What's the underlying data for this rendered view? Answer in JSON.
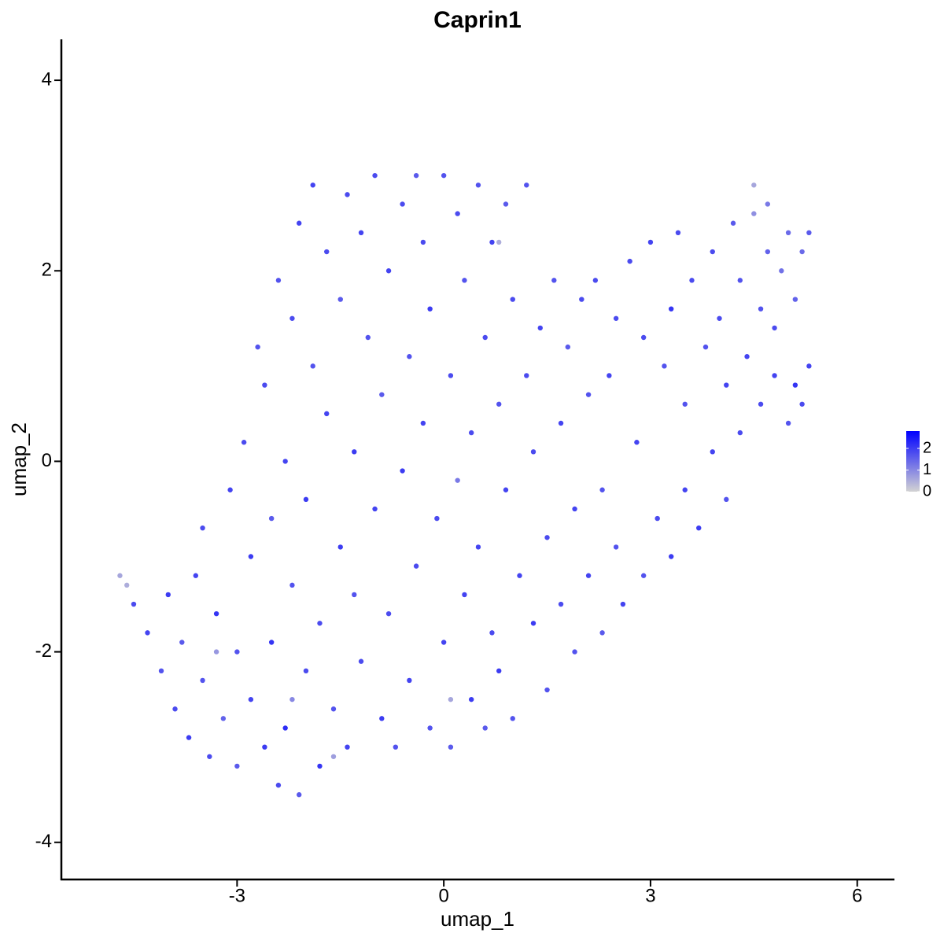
{
  "chart_data": {
    "type": "scatter",
    "title": "Caprin1",
    "x_label": "umap_1",
    "y_label": "umap_2",
    "xlim": [
      -5.55,
      6.54
    ],
    "ylim": [
      -4.39,
      4.43
    ],
    "xticks": [
      -3,
      0,
      3,
      6
    ],
    "yticks": [
      -4,
      -2,
      0,
      2,
      4
    ],
    "colorbar": {
      "lim": [
        0,
        2.8
      ],
      "ticks": [
        0,
        1,
        2
      ],
      "low_color": "#d3d3d3",
      "high_color": "#0000ff"
    },
    "x": [
      -4.7,
      -4.6,
      -4.5,
      -4.3,
      -4.1,
      -4.0,
      -3.9,
      -3.8,
      -3.7,
      -3.6,
      -3.5,
      -3.4,
      -3.3,
      -3.2,
      -3.1,
      -3.0,
      -3.0,
      -2.9,
      -2.8,
      -2.8,
      -2.7,
      -2.6,
      -2.6,
      -2.5,
      -2.5,
      -2.4,
      -2.4,
      -2.3,
      -2.3,
      -2.2,
      -2.2,
      -2.1,
      -2.1,
      -2.0,
      -2.0,
      -1.9,
      -1.9,
      -1.8,
      -1.8,
      -1.7,
      -1.7,
      -1.6,
      -1.5,
      -1.5,
      -1.4,
      -1.4,
      -1.3,
      -1.3,
      -1.2,
      -1.2,
      -1.1,
      -1.0,
      -1.0,
      -0.9,
      -0.9,
      -0.8,
      -0.8,
      -0.7,
      -0.6,
      -0.6,
      -0.5,
      -0.5,
      -0.4,
      -0.4,
      -0.3,
      -0.3,
      -0.2,
      -0.2,
      -0.1,
      0.0,
      0.0,
      0.1,
      0.1,
      0.2,
      0.2,
      0.3,
      0.3,
      0.4,
      0.4,
      0.5,
      0.5,
      0.6,
      0.6,
      0.7,
      0.7,
      0.8,
      0.8,
      0.9,
      0.9,
      1.0,
      1.0,
      1.1,
      1.2,
      1.2,
      1.3,
      1.3,
      1.4,
      1.5,
      1.5,
      1.6,
      1.7,
      1.7,
      1.8,
      1.9,
      1.9,
      2.0,
      2.1,
      2.1,
      2.2,
      2.3,
      2.3,
      2.4,
      2.5,
      2.5,
      2.6,
      2.7,
      2.8,
      2.9,
      2.9,
      3.0,
      3.1,
      3.2,
      3.3,
      3.3,
      3.4,
      3.5,
      3.5,
      3.6,
      3.7,
      3.8,
      3.9,
      3.9,
      4.0,
      4.1,
      4.1,
      4.2,
      4.3,
      4.3,
      4.4,
      4.5,
      4.5,
      4.6,
      4.6,
      4.7,
      4.7,
      4.8,
      4.8,
      4.9,
      5.0,
      5.0,
      5.1,
      5.1,
      5.2,
      5.3,
      5.3,
      5.2,
      -3.5,
      -3.3,
      -2.2,
      -1.6,
      0.1,
      0.8
    ],
    "y": [
      -1.2,
      -1.3,
      -1.5,
      -1.8,
      -2.2,
      -1.4,
      -2.6,
      -1.9,
      -2.9,
      -1.2,
      -2.3,
      -3.1,
      -1.6,
      -2.7,
      -0.3,
      -2.0,
      -3.2,
      0.2,
      -1.0,
      -2.5,
      1.2,
      -3.0,
      0.8,
      -0.6,
      -1.9,
      1.9,
      -3.4,
      0.0,
      -2.8,
      1.5,
      -1.3,
      2.5,
      -3.5,
      -0.4,
      -2.2,
      2.9,
      1.0,
      -3.2,
      -1.7,
      0.5,
      2.2,
      -2.6,
      -0.9,
      1.7,
      2.8,
      -3.0,
      -1.4,
      0.1,
      2.4,
      -2.1,
      1.3,
      -0.5,
      3.0,
      -2.7,
      0.7,
      2.0,
      -1.6,
      -3.0,
      2.7,
      -0.1,
      1.1,
      -2.3,
      3.0,
      -1.1,
      0.4,
      2.3,
      -2.8,
      1.6,
      -0.6,
      3.0,
      -1.9,
      0.9,
      -3.0,
      2.6,
      -0.2,
      -1.4,
      1.9,
      -2.5,
      0.3,
      2.9,
      -0.9,
      1.3,
      -2.8,
      2.3,
      -1.8,
      0.6,
      -2.2,
      2.7,
      -0.3,
      1.7,
      -2.7,
      -1.2,
      0.9,
      2.9,
      -1.7,
      0.1,
      1.4,
      -2.4,
      -0.8,
      1.9,
      0.4,
      -1.5,
      1.2,
      -0.5,
      -2.0,
      1.7,
      0.7,
      -1.2,
      1.9,
      -0.3,
      -1.8,
      0.9,
      1.5,
      -0.9,
      -1.5,
      2.1,
      0.2,
      -1.2,
      1.3,
      2.3,
      -0.6,
      1.0,
      -1.0,
      1.6,
      2.4,
      0.6,
      -0.3,
      1.9,
      -0.7,
      1.2,
      2.2,
      0.1,
      1.5,
      -0.4,
      0.8,
      2.5,
      1.9,
      0.3,
      1.1,
      2.9,
      2.6,
      0.6,
      1.6,
      2.7,
      2.2,
      0.9,
      1.4,
      2.0,
      0.4,
      2.4,
      0.8,
      1.7,
      2.2,
      1.0,
      2.4,
      0.6,
      -0.7,
      -2.0,
      -2.5,
      -3.1,
      -2.5,
      2.3
    ],
    "color_values": [
      0.6,
      0.5,
      1.8,
      1.9,
      1.7,
      2.0,
      1.8,
      1.6,
      2.0,
      1.9,
      1.7,
      1.8,
      2.1,
      1.5,
      1.9,
      1.7,
      1.6,
      1.8,
      2.0,
      1.9,
      1.7,
      2.0,
      1.8,
      1.6,
      2.1,
      1.7,
      1.8,
      1.9,
      2.2,
      1.8,
      1.7,
      1.9,
      1.6,
      2.0,
      1.8,
      1.9,
      1.7,
      2.1,
      1.8,
      1.9,
      1.8,
      1.7,
      2.0,
      1.6,
      1.8,
      1.9,
      1.7,
      2.0,
      1.9,
      1.8,
      1.7,
      1.9,
      1.8,
      2.0,
      1.6,
      1.9,
      1.8,
      1.7,
      1.8,
      2.0,
      1.7,
      1.9,
      1.6,
      1.8,
      1.9,
      1.8,
      1.7,
      2.0,
      1.8,
      1.7,
      1.9,
      1.8,
      1.6,
      1.8,
      1.2,
      1.9,
      1.7,
      2.0,
      1.8,
      1.7,
      1.9,
      1.8,
      1.6,
      1.9,
      1.8,
      1.7,
      2.0,
      1.6,
      1.9,
      1.8,
      1.7,
      1.9,
      1.8,
      1.7,
      2.0,
      1.8,
      1.9,
      1.7,
      1.8,
      1.7,
      1.9,
      1.8,
      1.6,
      1.9,
      1.7,
      1.8,
      1.7,
      1.9,
      1.8,
      1.7,
      1.6,
      1.9,
      1.8,
      1.7,
      1.9,
      1.8,
      1.9,
      1.7,
      1.8,
      1.9,
      1.8,
      1.7,
      2.0,
      2.1,
      1.8,
      1.7,
      1.9,
      1.8,
      2.0,
      1.7,
      1.8,
      1.9,
      1.8,
      1.7,
      1.9,
      1.6,
      1.7,
      1.8,
      1.9,
      0.6,
      0.9,
      1.8,
      1.7,
      1.2,
      1.5,
      1.9,
      1.8,
      1.3,
      1.7,
      1.4,
      2.1,
      1.5,
      1.4,
      1.9,
      1.6,
      1.8,
      1.8,
      0.8,
      1.0,
      0.7,
      0.6,
      0.5
    ]
  }
}
